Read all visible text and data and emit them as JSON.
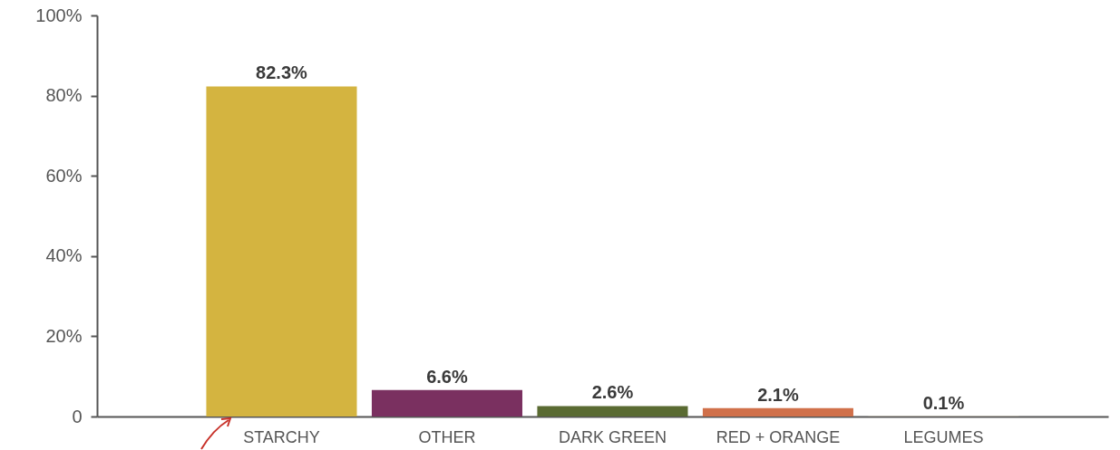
{
  "chart_data": {
    "type": "bar",
    "categories": [
      "STARCHY",
      "OTHER",
      "DARK GREEN",
      "RED + ORANGE",
      "LEGUMES"
    ],
    "values": [
      82.3,
      6.6,
      2.6,
      2.1,
      0.1
    ],
    "colors": [
      "#d4b440",
      "#7a3060",
      "#5a6b32",
      "#d0704a",
      "#c9c3b1"
    ],
    "value_labels": [
      "82.3%",
      "6.6%",
      "2.6%",
      "2.1%",
      "0.1%"
    ],
    "ylim": [
      0,
      100
    ],
    "yticks": [
      0,
      {
        "value": 20,
        "label": "20%"
      },
      {
        "value": 40,
        "label": "40%"
      },
      {
        "value": 60,
        "label": "60%"
      },
      {
        "value": 80,
        "label": "80%"
      },
      {
        "value": 100,
        "label": "100%"
      }
    ],
    "grid": false
  }
}
